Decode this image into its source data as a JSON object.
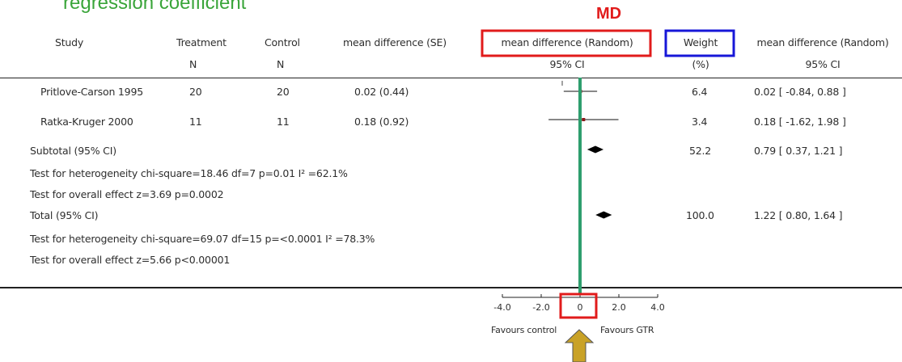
{
  "slide": {
    "title": "regression coefficient",
    "md_label": "MD",
    "colors": {
      "title": "#3aa53a",
      "md_box": "#e11b1b",
      "weight_box": "#1717d8",
      "null_line": "#2e9e6e",
      "arrow": "#c9a227",
      "point_red": "#8b1a1a"
    }
  },
  "headers": {
    "study": "Study",
    "treatment": "Treatment",
    "treatment_n": "N",
    "control": "Control",
    "control_n": "N",
    "md_se": "mean difference (SE)",
    "md_random": "mean difference (Random)",
    "md_random_ci": "95% CI",
    "weight": "Weight",
    "weight_unit": "(%)",
    "md_random2": "mean difference (Random)",
    "md_random2_ci": "95% CI"
  },
  "rows": [
    {
      "study": "Pritlove-Carson 1995",
      "treatment_n": "20",
      "control_n": "20",
      "md_se": "0.02 (0.44)",
      "weight": "6.4",
      "ci_text": "0.02 [ -0.84, 0.88 ]"
    },
    {
      "study": "Ratka-Kruger 2000",
      "treatment_n": "11",
      "control_n": "11",
      "md_se": "0.18 (0.92)",
      "weight": "3.4",
      "ci_text": "0.18 [ -1.62, 1.98 ]"
    }
  ],
  "subtotal": {
    "label": "Subtotal (95% CI)",
    "weight": "52.2",
    "ci_text": "0.79 [ 0.37, 1.21 ]",
    "heterogeneity": "Test for heterogeneity chi-square=18.46 df=7 p=0.01 I² =62.1%",
    "overall": "Test for overall effect z=3.69   p=0.0002"
  },
  "total": {
    "label": "Total (95% CI)",
    "weight": "100.0",
    "ci_text": "1.22 [ 0.80, 1.64 ]",
    "heterogeneity": "Test for heterogeneity chi-square=69.07 df=15 p=<0.0001 I² =78.3%",
    "overall": "Test for overall effect z=5.66   p<0.00001"
  },
  "axis_labels": {
    "left": "Favours control",
    "right": "Favours GTR"
  },
  "chart_data": {
    "type": "forest",
    "xlim": [
      -4,
      4
    ],
    "x_ticks": [
      "-4.0",
      "-2.0",
      "0",
      "2.0",
      "4.0"
    ],
    "null_value": 0,
    "studies": [
      {
        "label": "Pritlove-Carson 1995",
        "estimate": 0.02,
        "lower": -0.84,
        "upper": 0.88,
        "weight": 6.4
      },
      {
        "label": "Ratka-Kruger 2000",
        "estimate": 0.18,
        "lower": -1.62,
        "upper": 1.98,
        "weight": 3.4
      }
    ],
    "pooled": [
      {
        "label": "Subtotal (95% CI)",
        "estimate": 0.79,
        "lower": 0.37,
        "upper": 1.21
      },
      {
        "label": "Total (95% CI)",
        "estimate": 1.22,
        "lower": 0.8,
        "upper": 1.64
      }
    ]
  }
}
